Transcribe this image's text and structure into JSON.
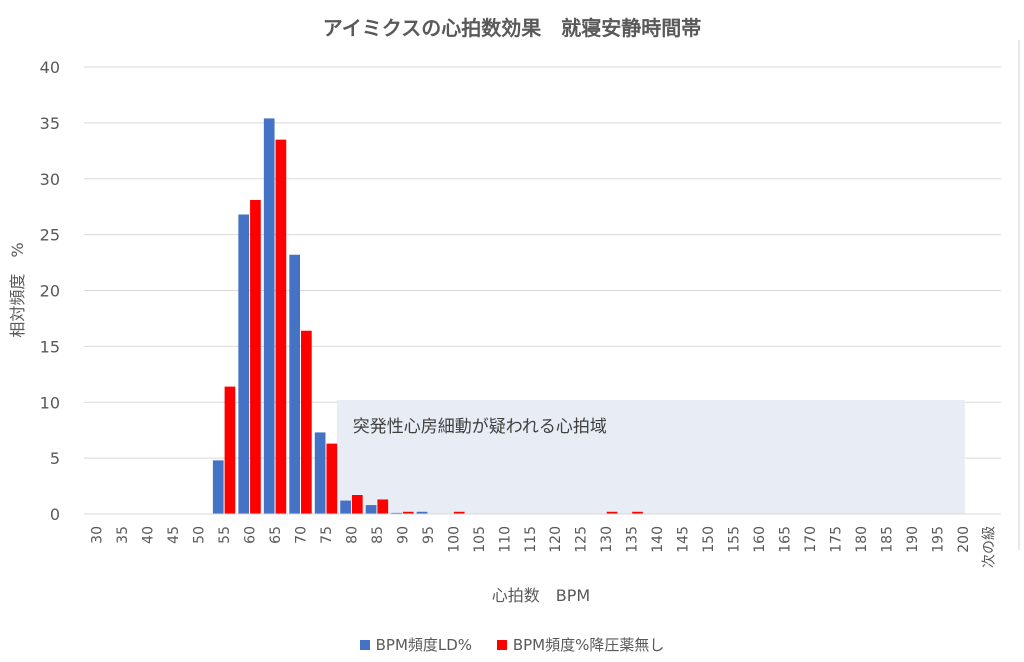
{
  "chart_data": {
    "type": "bar",
    "title": "アイミクスの心拍数効果　就寝安静時間帯",
    "xlabel": "心拍数　BPM",
    "ylabel": "相対頻度　%",
    "ylim": [
      0,
      40
    ],
    "yticks": [
      "0",
      "5",
      "10",
      "15",
      "20",
      "25",
      "30",
      "35",
      "40"
    ],
    "categories": [
      "30",
      "35",
      "40",
      "45",
      "50",
      "55",
      "60",
      "65",
      "70",
      "75",
      "80",
      "85",
      "90",
      "95",
      "100",
      "105",
      "110",
      "115",
      "120",
      "125",
      "130",
      "135",
      "140",
      "145",
      "150",
      "155",
      "160",
      "165",
      "170",
      "175",
      "180",
      "185",
      "190",
      "195",
      "200",
      "次の級"
    ],
    "series": [
      {
        "name": "BPM頻度LD%",
        "color": "#4472C4",
        "values": [
          0,
          0,
          0,
          0,
          0,
          4.8,
          26.8,
          35.4,
          23.2,
          7.3,
          1.2,
          0.8,
          0.1,
          0.2,
          0,
          0,
          0,
          0,
          0,
          0,
          0,
          0,
          0,
          0,
          0,
          0,
          0,
          0,
          0,
          0,
          0,
          0,
          0,
          0,
          0,
          0
        ]
      },
      {
        "name": "BPM頻度%降圧薬無し",
        "color": "#FF0000",
        "values": [
          0,
          0,
          0,
          0,
          0,
          11.4,
          28.1,
          33.5,
          16.4,
          6.3,
          1.7,
          1.3,
          0.2,
          0,
          0.2,
          0,
          0,
          0,
          0,
          0,
          0.2,
          0.2,
          0,
          0,
          0,
          0,
          0,
          0,
          0,
          0,
          0,
          0,
          0,
          0,
          0,
          0
        ]
      }
    ],
    "annotation": {
      "text": "突発性心房細動が疑われる心拍域",
      "x_from": "80",
      "x_to": "200",
      "y_from": 0,
      "y_to": 10.2,
      "color": "#E8EDF5"
    },
    "grid": true,
    "legend_position": "bottom"
  }
}
